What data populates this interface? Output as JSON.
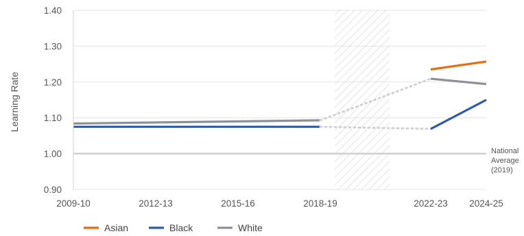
{
  "chart_data": {
    "type": "line",
    "ylabel": "Learning Rate",
    "ylim": [
      0.9,
      1.4
    ],
    "yticks": [
      "0.90",
      "1.00",
      "1.10",
      "1.20",
      "1.30",
      "1.40"
    ],
    "x_labels": [
      "2009-10",
      "2012-13",
      "2015-16",
      "2018-19",
      "2022-23",
      "2024-25"
    ],
    "gap_period": [
      "2019-20",
      "2021-22"
    ],
    "grid": true,
    "legend_position": "bottom-left",
    "reference_line": {
      "value": 1.0,
      "label_lines": [
        "National",
        "Average",
        "(2019)"
      ]
    },
    "series": [
      {
        "name": "Asian",
        "color": "#ea6a10",
        "points": [
          {
            "x": "2022-23",
            "y": 1.235
          },
          {
            "x": "2024-25",
            "y": 1.257
          }
        ]
      },
      {
        "name": "Black",
        "color": "#2f5aa8",
        "points": [
          {
            "x": "2009-10",
            "y": 1.075
          },
          {
            "x": "2018-19",
            "y": 1.075
          },
          {
            "x": "2022-23",
            "y": 1.069
          },
          {
            "x": "2024-25",
            "y": 1.15
          }
        ]
      },
      {
        "name": "White",
        "color": "#8d9097",
        "points": [
          {
            "x": "2009-10",
            "y": 1.084
          },
          {
            "x": "2018-19",
            "y": 1.093
          },
          {
            "x": "2022-23",
            "y": 1.209
          },
          {
            "x": "2024-25",
            "y": 1.194
          }
        ]
      }
    ]
  }
}
